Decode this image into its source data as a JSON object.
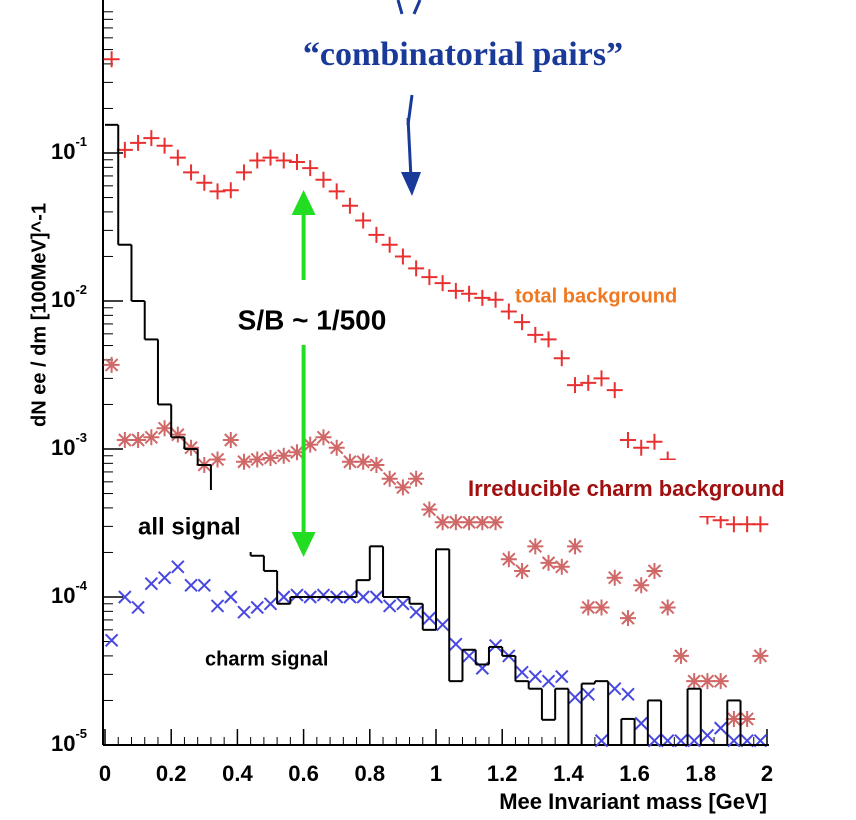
{
  "chart_data": {
    "type": "scatter",
    "y_label": "dN ee / dm [100MeV]^-1",
    "x_label": "Mee Invariant mass [GeV]",
    "ylog": true,
    "xlim": [
      0,
      2
    ],
    "ylim": [
      1e-05,
      1
    ],
    "xticks": [
      0,
      0.2,
      0.4,
      0.6,
      0.8,
      1,
      1.2,
      1.4,
      1.6,
      1.8,
      2
    ],
    "yticks": [
      {
        "value": 1e-05,
        "label": "10",
        "exponent": "-5"
      },
      {
        "value": 0.0001,
        "label": "10",
        "exponent": "-4"
      },
      {
        "value": 0.001,
        "label": "10",
        "exponent": "-3"
      },
      {
        "value": 0.01,
        "label": "10",
        "exponent": "-2"
      },
      {
        "value": 0.1,
        "label": "10",
        "exponent": "-1"
      }
    ],
    "x": [
      0.02,
      0.06,
      0.1,
      0.14,
      0.18,
      0.22,
      0.26,
      0.3,
      0.34,
      0.38,
      0.42,
      0.46,
      0.5,
      0.54,
      0.58,
      0.62,
      0.66,
      0.7,
      0.74,
      0.78,
      0.82,
      0.86,
      0.9,
      0.94,
      0.98,
      1.02,
      1.06,
      1.1,
      1.14,
      1.18,
      1.22,
      1.26,
      1.3,
      1.34,
      1.38,
      1.42,
      1.46,
      1.5,
      1.54,
      1.58,
      1.62,
      1.66,
      1.7,
      1.74,
      1.78,
      1.82,
      1.86,
      1.9,
      1.94,
      1.98
    ],
    "bins": [
      0,
      0.04,
      0.08,
      0.12,
      0.16,
      0.2,
      0.24,
      0.28,
      0.32,
      0.36,
      0.4,
      0.44,
      0.48,
      0.52,
      0.56,
      0.6,
      0.64,
      0.68,
      0.72,
      0.76,
      0.8,
      0.84,
      0.88,
      0.92,
      0.96,
      1,
      1.04,
      1.08,
      1.12,
      1.16,
      1.2,
      1.24,
      1.28,
      1.32,
      1.36,
      1.4,
      1.44,
      1.48,
      1.52,
      1.56,
      1.6,
      1.64,
      1.68,
      1.72,
      1.76,
      1.8,
      1.84,
      1.88,
      1.92,
      1.96,
      2
    ],
    "series": [
      {
        "name": "total background",
        "marker": "plus",
        "color": "#e83030",
        "label_color": "#f07820",
        "values": [
          0.43,
          0.105,
          0.117,
          0.126,
          0.112,
          0.093,
          0.074,
          0.063,
          0.055,
          0.056,
          0.074,
          0.089,
          0.093,
          0.089,
          0.087,
          0.079,
          0.066,
          0.055,
          0.044,
          0.035,
          0.028,
          0.024,
          0.02,
          0.0166,
          0.0145,
          0.0132,
          0.0117,
          0.0112,
          0.0105,
          0.0102,
          0.0085,
          0.0072,
          0.0059,
          0.0055,
          0.0041,
          0.0027,
          0.0028,
          0.003,
          0.0025,
          0.00115,
          0.00102,
          0.00112,
          0.00085,
          0.00063,
          0.00046,
          0.00035,
          0.00033,
          0.00031,
          0.00031,
          0.00031
        ]
      },
      {
        "name": "Irreducible charm  background",
        "marker": "star",
        "color": "#d06868",
        "label_color": "#a01010",
        "values": [
          0.0037,
          0.00115,
          0.00115,
          0.0012,
          0.00138,
          0.00125,
          0.00102,
          0.00078,
          0.00085,
          0.00115,
          0.00082,
          0.00085,
          0.00087,
          0.0009,
          0.00095,
          0.00107,
          0.0012,
          0.00102,
          0.00082,
          0.00082,
          0.00078,
          0.00063,
          0.00055,
          0.00063,
          0.00039,
          0.00032,
          0.00032,
          0.00032,
          0.00032,
          0.00032,
          0.00018,
          0.00015,
          0.00022,
          0.00017,
          0.00016,
          0.00022,
          8.5e-05,
          8.5e-05,
          0.000135,
          7.2e-05,
          0.00012,
          0.00015,
          8.5e-05,
          4e-05,
          2.7e-05,
          2.7e-05,
          2.7e-05,
          1.5e-05,
          1.5e-05,
          4e-05
        ]
      },
      {
        "name": "charm signal",
        "marker": "cross",
        "color": "#4848e0",
        "label_color": "#000000",
        "values": [
          5.1e-05,
          0.0001,
          8.5e-05,
          0.000123,
          0.000135,
          0.00016,
          0.00012,
          0.00012,
          8.7e-05,
          0.0001,
          7.9e-05,
          8.5e-05,
          9e-05,
          0.0001,
          0.000103,
          0.0001,
          0.000103,
          0.0001,
          0.0001,
          0.0001,
          0.0001,
          8.7e-05,
          9e-05,
          7.9e-05,
          7.2e-05,
          6.5e-05,
          4.8e-05,
          4e-05,
          3.3e-05,
          4.7e-05,
          4e-05,
          3.1e-05,
          2.9e-05,
          2.7e-05,
          2.9e-05,
          2.1e-05,
          2.2e-05,
          1.07e-05,
          2.4e-05,
          2.2e-05,
          1.4e-05,
          1.07e-05,
          1.07e-05,
          1.07e-05,
          1.07e-05,
          1.16e-05,
          1.3e-05,
          1.07e-05,
          1.07e-05,
          1.07e-05
        ]
      },
      {
        "name": "all signal",
        "marker": "step",
        "color": "#000000",
        "label_color": "#000000",
        "values": [
          0.155,
          0.024,
          0.01,
          0.0055,
          0.002,
          0.0012,
          0.001,
          0.00078,
          0.00052,
          0.00039,
          0.00028,
          0.00019,
          0.00015,
          9e-05,
          0.0001,
          0.0001,
          0.0001,
          0.0001,
          0.0001,
          0.00013,
          0.00022,
          0.0001,
          0.0001,
          9e-05,
          6e-05,
          0.00021,
          2.7e-05,
          4.4e-05,
          3.5e-05,
          4.6e-05,
          4e-05,
          2.7e-05,
          2.4e-05,
          1.48e-05,
          2.4e-05,
          1e-05,
          2.6e-05,
          2.7e-05,
          1e-05,
          1.5e-05,
          1e-05,
          2e-05,
          1e-05,
          1e-05,
          2.4e-05,
          1e-05,
          1e-05,
          2e-05,
          1e-05,
          1e-05
        ]
      }
    ],
    "annotations": [
      {
        "text": "“combinatorial pairs”",
        "color": "#1a3a9a"
      },
      {
        "text": "S/B ~ 1/500",
        "color": "#000000"
      }
    ]
  }
}
